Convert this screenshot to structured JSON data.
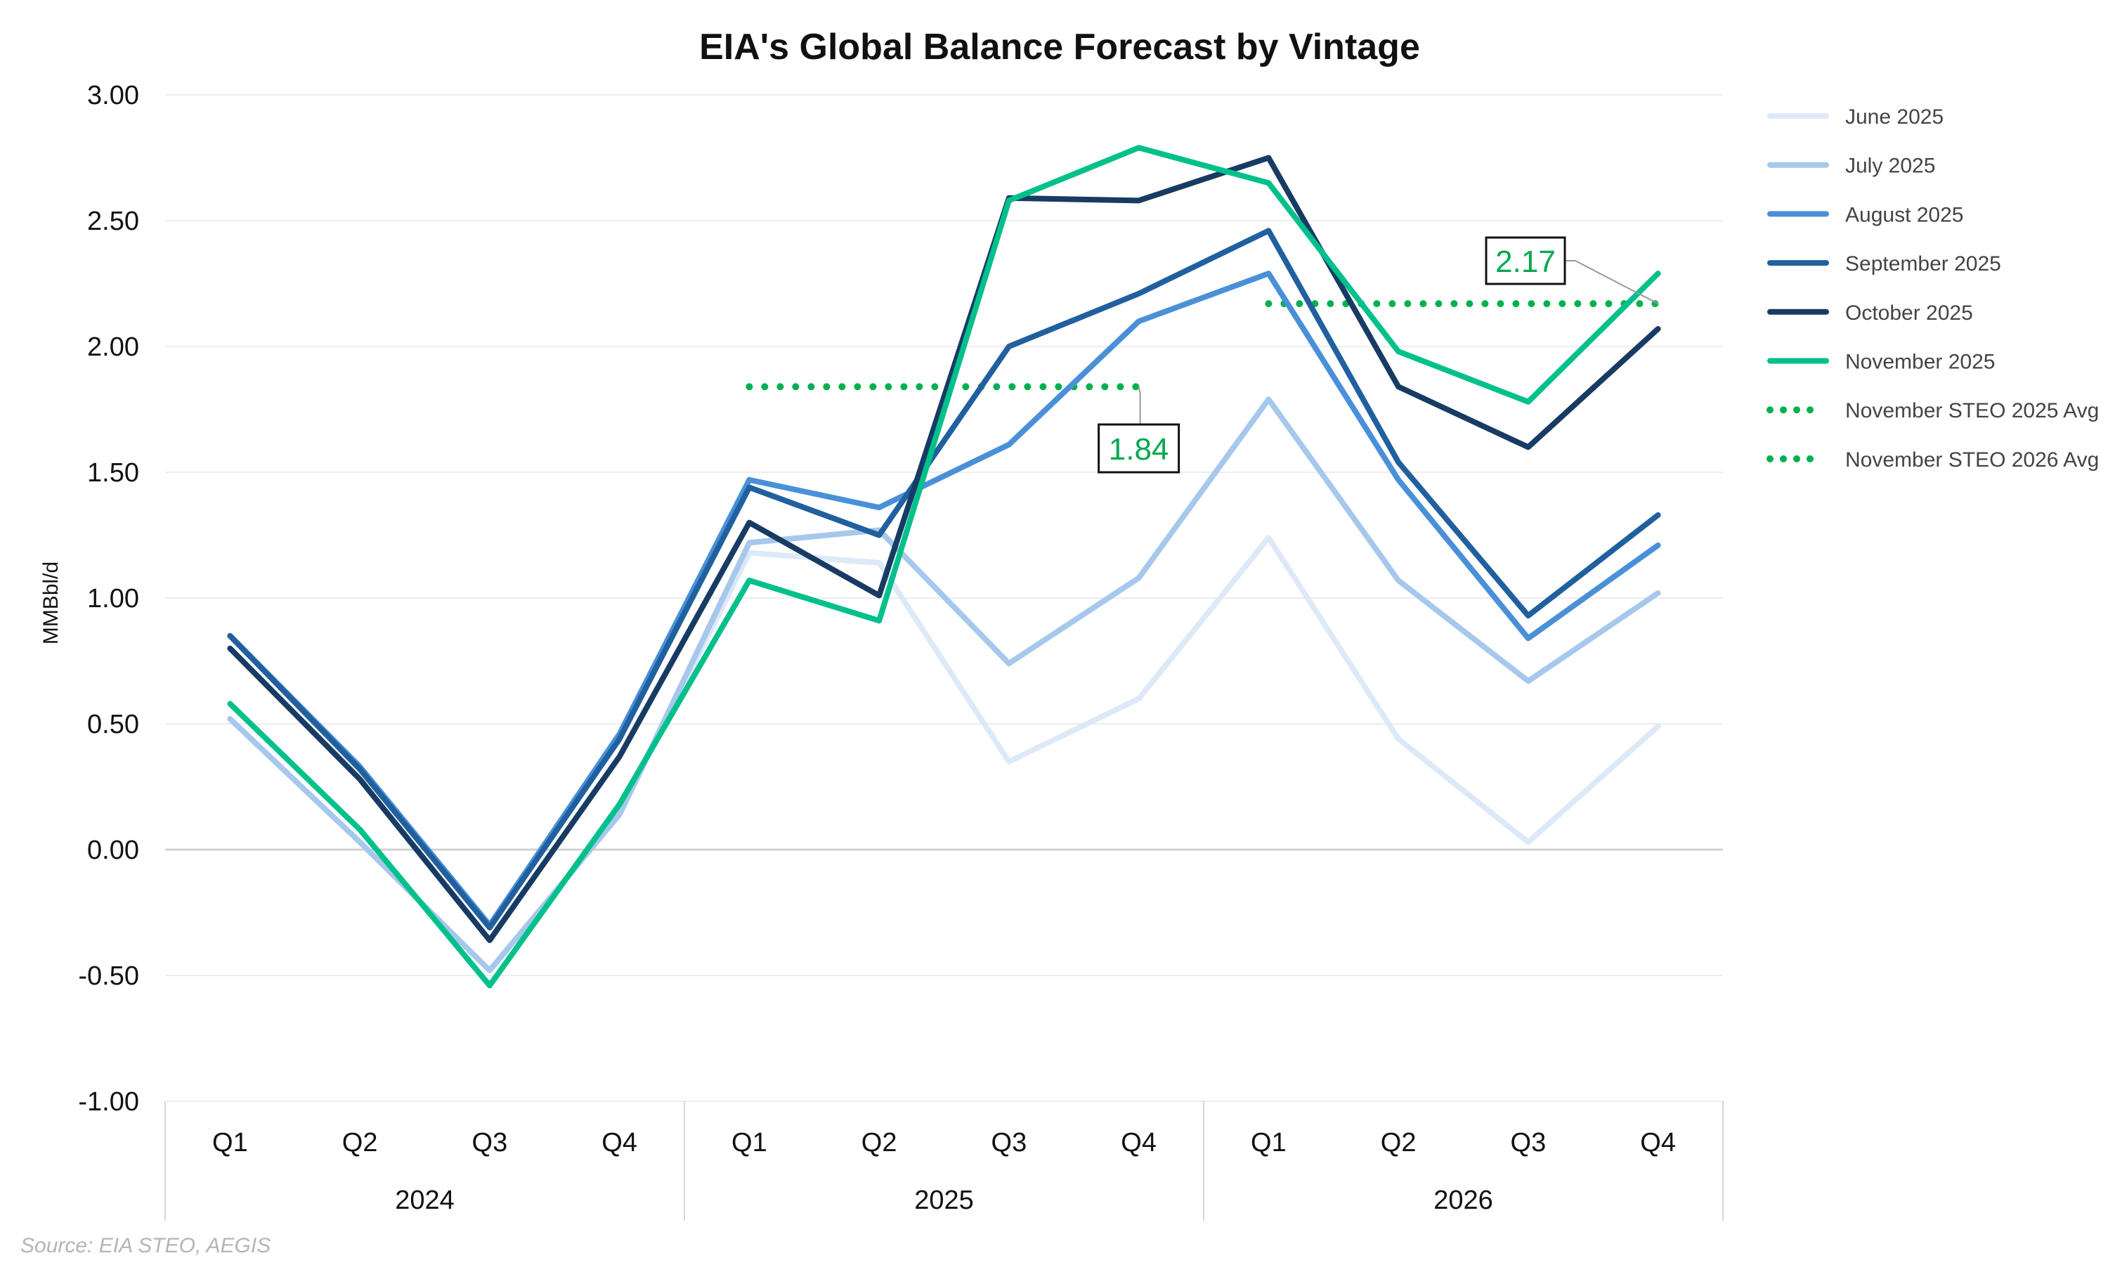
{
  "chart_data": {
    "type": "line",
    "title": "EIA's Global Balance Forecast by Vintage",
    "ylabel": "MMBbl/d",
    "xlabel": "",
    "ylim": [
      -1.0,
      3.0
    ],
    "yticks": [
      "3.00",
      "2.50",
      "2.00",
      "1.50",
      "1.00",
      "0.50",
      "0.00",
      "-0.50",
      "-1.00"
    ],
    "ytick_values": [
      3.0,
      2.5,
      2.0,
      1.5,
      1.0,
      0.5,
      0.0,
      -0.5,
      -1.0
    ],
    "categories": [
      "Q1",
      "Q2",
      "Q3",
      "Q4",
      "Q1",
      "Q2",
      "Q3",
      "Q4",
      "Q1",
      "Q2",
      "Q3",
      "Q4"
    ],
    "groups": [
      "2024",
      "2025",
      "2026"
    ],
    "grid": "horizontal",
    "legend_position": "right",
    "series": [
      {
        "name": "June 2025",
        "color": "#dde9f7",
        "values": [
          0.52,
          0.03,
          -0.48,
          0.14,
          1.18,
          1.14,
          0.35,
          0.6,
          1.24,
          0.44,
          0.03,
          0.49
        ]
      },
      {
        "name": "July 2025",
        "color": "#a6c8ec",
        "values": [
          0.52,
          0.03,
          -0.48,
          0.14,
          1.22,
          1.27,
          0.74,
          1.08,
          1.79,
          1.07,
          0.67,
          1.02
        ]
      },
      {
        "name": "August 2025",
        "color": "#4a90d9",
        "values": [
          0.85,
          0.33,
          -0.3,
          0.46,
          1.47,
          1.36,
          1.61,
          2.1,
          2.29,
          1.47,
          0.84,
          1.21
        ]
      },
      {
        "name": "September 2025",
        "color": "#21609f",
        "values": [
          0.85,
          0.32,
          -0.31,
          0.44,
          1.44,
          1.25,
          2.0,
          2.21,
          2.46,
          1.54,
          0.93,
          1.33
        ]
      },
      {
        "name": "October 2025",
        "color": "#173b63",
        "values": [
          0.8,
          0.28,
          -0.36,
          0.37,
          1.3,
          1.01,
          2.59,
          2.58,
          2.75,
          1.84,
          1.6,
          2.07
        ]
      },
      {
        "name": "November 2025",
        "color": "#00c08b",
        "values": [
          0.58,
          0.08,
          -0.54,
          0.18,
          1.07,
          0.91,
          2.58,
          2.79,
          2.65,
          1.98,
          1.78,
          2.29
        ]
      }
    ],
    "averages": [
      {
        "name": "November STEO 2025 Avg",
        "color": "#00b050",
        "value": 1.84,
        "label": "1.84",
        "from_index": 4,
        "to_index": 7
      },
      {
        "name": "November STEO 2026 Avg",
        "color": "#00b050",
        "value": 2.17,
        "label": "2.17",
        "from_index": 8,
        "to_index": 11
      }
    ],
    "source": "Source: EIA STEO, AEGIS"
  }
}
